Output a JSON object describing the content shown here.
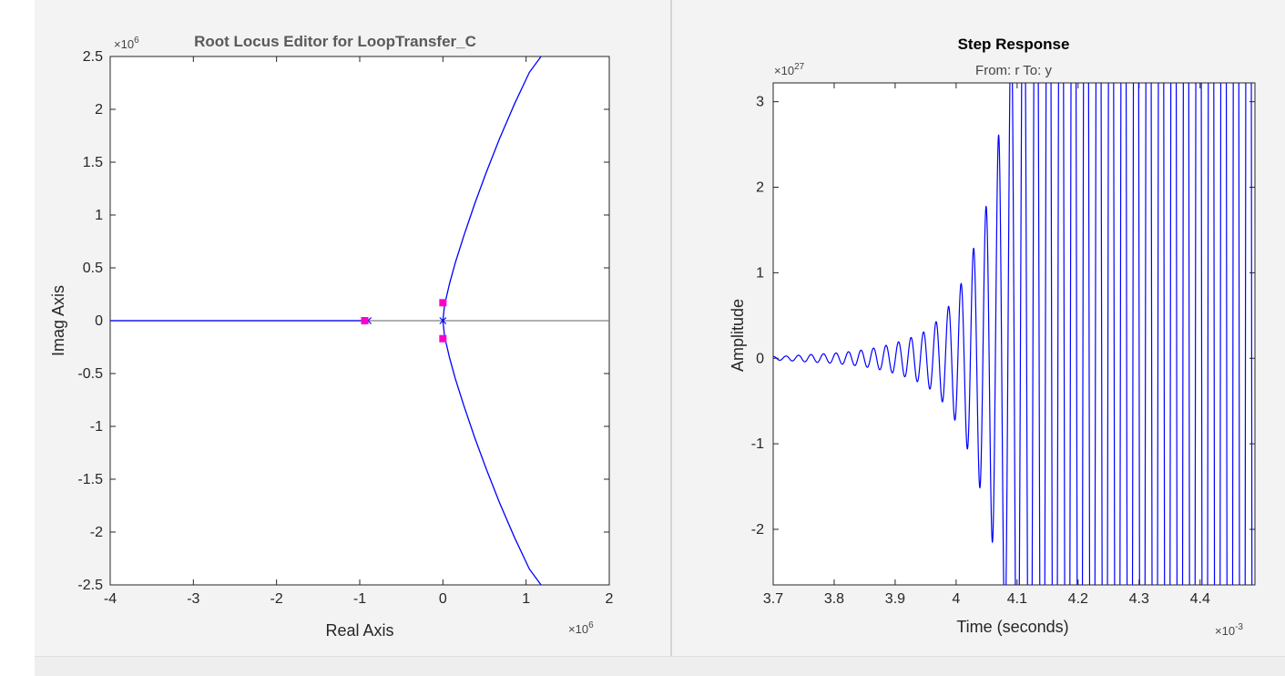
{
  "root_locus": {
    "title": "Root Locus Editor for LoopTransfer_C",
    "x_multiplier": "×10",
    "x_multiplier_exp": "6",
    "y_multiplier": "×10",
    "y_multiplier_exp": "6",
    "xlabel": "Real Axis",
    "ylabel": "Imag Axis"
  },
  "step_response": {
    "title": "Step Response",
    "subtitle": "From: r  To: y",
    "x_multiplier": "×10",
    "x_multiplier_exp": "-3",
    "y_multiplier": "×10",
    "y_multiplier_exp": "27",
    "xlabel": "Time (seconds)",
    "ylabel": "Amplitude"
  },
  "colors": {
    "locus_line": "#0000ff",
    "closed_loop_pole": "#ff00cc",
    "axis_line": "#808080",
    "plot_bg": "#ffffff",
    "panel_bg": "#f3f3f3"
  },
  "chart_data": [
    {
      "type": "line",
      "title": "Root Locus Editor for LoopTransfer_C",
      "xlabel": "Real Axis",
      "ylabel": "Imag Axis",
      "x_scale_factor": 1000000,
      "y_scale_factor": 1000000,
      "xlim": [
        -4,
        2
      ],
      "ylim": [
        -2.5,
        2.5
      ],
      "xticks": [
        -4,
        -3,
        -2,
        -1,
        0,
        1,
        2
      ],
      "yticks": [
        -2.5,
        -2,
        -1.5,
        -1,
        -0.5,
        0,
        0.5,
        1,
        1.5,
        2,
        2.5
      ],
      "xtick_labels": [
        "-4",
        "-3",
        "-2",
        "-1",
        "0",
        "1",
        "2"
      ],
      "ytick_labels": [
        "-2.5",
        "-2",
        "-1.5",
        "-1",
        "-0.5",
        "0",
        "0.5",
        "1",
        "1.5",
        "2",
        "2.5"
      ],
      "grid": false,
      "series": [
        {
          "x": [
            -4,
            -0.93
          ],
          "y": [
            0,
            0
          ]
        },
        {
          "x": [
            0,
            0.02,
            0.08,
            0.15,
            0.25,
            0.38,
            0.52,
            0.68,
            0.86,
            1.04,
            1.18
          ],
          "y": [
            0,
            0.15,
            0.35,
            0.55,
            0.8,
            1.1,
            1.4,
            1.72,
            2.05,
            2.35,
            2.5
          ]
        },
        {
          "x": [
            0,
            0.02,
            0.08,
            0.15,
            0.25,
            0.38,
            0.52,
            0.68,
            0.86,
            1.04,
            1.18
          ],
          "y": [
            0,
            -0.15,
            -0.35,
            -0.55,
            -0.8,
            -1.1,
            -1.4,
            -1.72,
            -2.05,
            -2.35,
            -2.5
          ]
        }
      ],
      "open_loop_poles": [
        [
          -0.9,
          0
        ],
        [
          0,
          0
        ]
      ],
      "closed_loop_poles": [
        [
          -0.94,
          0
        ],
        [
          0,
          0.17
        ],
        [
          0,
          -0.17
        ]
      ]
    },
    {
      "type": "line",
      "title": "Step Response",
      "subtitle": "From: r  To: y",
      "xlabel": "Time (seconds)",
      "ylabel": "Amplitude",
      "x_scale_factor": 0.001,
      "y_scale_factor": 1e+27,
      "xlim": [
        3.7,
        4.49
      ],
      "ylim": [
        -2.65,
        3.22
      ],
      "xticks": [
        3.7,
        3.8,
        3.9,
        4,
        4.1,
        4.2,
        4.3,
        4.4
      ],
      "yticks": [
        -2,
        -1,
        0,
        1,
        2,
        3
      ],
      "xtick_labels": [
        "3.7",
        "3.8",
        "3.9",
        "4",
        "4.1",
        "4.2",
        "4.3",
        "4.4"
      ],
      "ytick_labels": [
        "-2",
        "-1",
        "0",
        "1",
        "2",
        "3"
      ],
      "grid": false,
      "oscillation": {
        "period": 0.0205,
        "envelope_t": [
          3.7,
          3.75,
          3.8,
          3.85,
          3.9,
          3.95,
          4.0,
          4.03,
          4.05,
          4.08,
          4.1,
          4.15,
          4.49
        ],
        "envelope_amp": [
          0.02,
          0.04,
          0.06,
          0.1,
          0.18,
          0.32,
          0.75,
          1.32,
          1.8,
          3.18,
          5,
          10,
          20
        ]
      },
      "series": [
        {
          "name": "",
          "peaks_t": [
            3.762,
            3.803,
            3.845,
            3.884,
            3.925,
            3.966,
            4.006,
            4.046,
            4.087
          ],
          "peaks_amp": [
            0.03,
            0.05,
            0.09,
            0.17,
            0.31,
            0.56,
            1.01,
            1.79,
            3.18
          ],
          "troughs_t": [
            3.782,
            3.824,
            3.865,
            3.905,
            3.946,
            3.986,
            4.027,
            4.067
          ],
          "troughs_amp": [
            -0.03,
            -0.06,
            -0.12,
            -0.22,
            -0.41,
            -0.75,
            -1.33,
            -2.38
          ]
        }
      ]
    }
  ]
}
